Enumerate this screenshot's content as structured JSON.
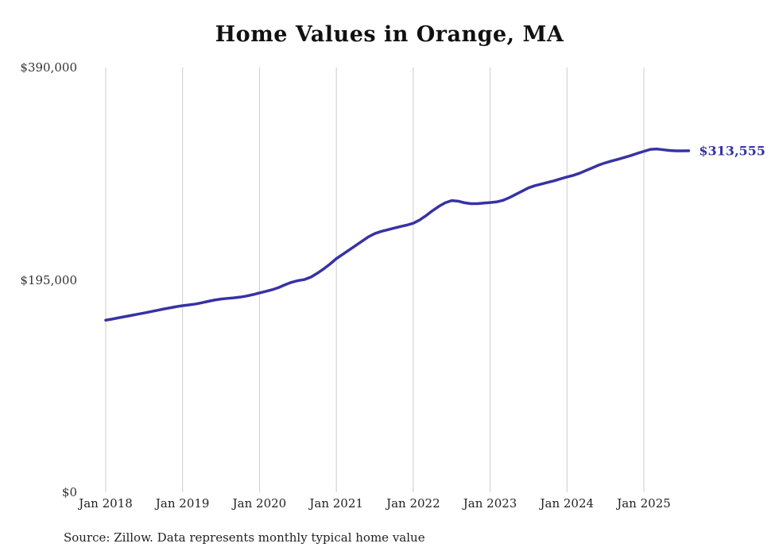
{
  "chart_data": {
    "type": "line",
    "title": "Home Values in Orange, MA",
    "xlabel": "",
    "ylabel": "",
    "ylim": [
      0,
      390000
    ],
    "unit": "USD",
    "grid": "vertical-only",
    "line_color": "#3732a5",
    "grid_color": "#cccccc",
    "end_label": "$313,555",
    "end_value": 313555,
    "x_tick_labels": [
      "Jan 2018",
      "Jan 2019",
      "Jan 2020",
      "Jan 2021",
      "Jan 2022",
      "Jan 2023",
      "Jan 2024",
      "Jan 2025"
    ],
    "y_ticks": [
      {
        "label": "$0",
        "value": 0
      },
      {
        "label": "$195,000",
        "value": 195000
      },
      {
        "label": "$390,000",
        "value": 390000
      }
    ],
    "series": [
      {
        "name": "Monthly typical home value",
        "x_start": "2018-01",
        "x_interval": "month",
        "values": [
          158000,
          159000,
          160200,
          161300,
          162400,
          163500,
          164600,
          165800,
          167000,
          168200,
          169300,
          170400,
          171300,
          172000,
          172800,
          174000,
          175300,
          176500,
          177400,
          178000,
          178500,
          179200,
          180200,
          181500,
          183000,
          184500,
          186000,
          188000,
          190500,
          192800,
          194300,
          195300,
          197500,
          201000,
          205000,
          209500,
          214500,
          218500,
          222500,
          226500,
          230500,
          234500,
          237500,
          239500,
          241000,
          242500,
          244000,
          245300,
          247000,
          250000,
          254000,
          258500,
          262500,
          265800,
          267800,
          267300,
          265800,
          265000,
          265000,
          265500,
          266000,
          266600,
          268000,
          270500,
          273500,
          276500,
          279500,
          281500,
          283000,
          284500,
          286000,
          287800,
          289500,
          291000,
          293000,
          295500,
          298000,
          300500,
          302500,
          304200,
          305800,
          307500,
          309200,
          311200,
          313000,
          314800,
          315200,
          314500,
          313800,
          313500,
          313500,
          313555
        ]
      }
    ],
    "source_note": "Source: Zillow. Data represents monthly typical home value"
  }
}
